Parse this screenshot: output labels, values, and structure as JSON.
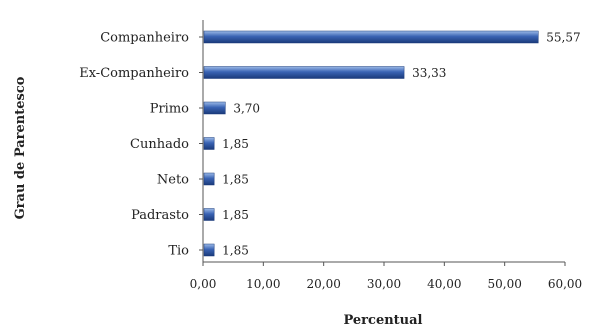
{
  "chart_data": {
    "type": "bar",
    "orientation": "horizontal",
    "categories": [
      "Companheiro",
      "Ex-Companheiro",
      "Primo",
      "Cunhado",
      "Neto",
      "Padrasto",
      "Tio"
    ],
    "values": [
      55.57,
      33.33,
      3.7,
      1.85,
      1.85,
      1.85,
      1.85
    ],
    "data_labels": [
      "55,57",
      "33,33",
      "3,70",
      "1,85",
      "1,85",
      "1,85",
      "1,85"
    ],
    "xlabel": "Percentual",
    "ylabel": "Grau de Parentesco",
    "xlim": [
      0,
      60
    ],
    "x_ticks": [
      0,
      10,
      20,
      30,
      40,
      50,
      60
    ],
    "x_tick_labels": [
      "0,00",
      "10,00",
      "20,00",
      "30,00",
      "40,00",
      "50,00",
      "60,00"
    ],
    "grid": false,
    "legend": "none",
    "colors": {
      "bar_main": "#2f55a4",
      "bar_light": "#8fb0e0",
      "bar_dark": "#1a3a7a",
      "axis": "#555555"
    }
  }
}
